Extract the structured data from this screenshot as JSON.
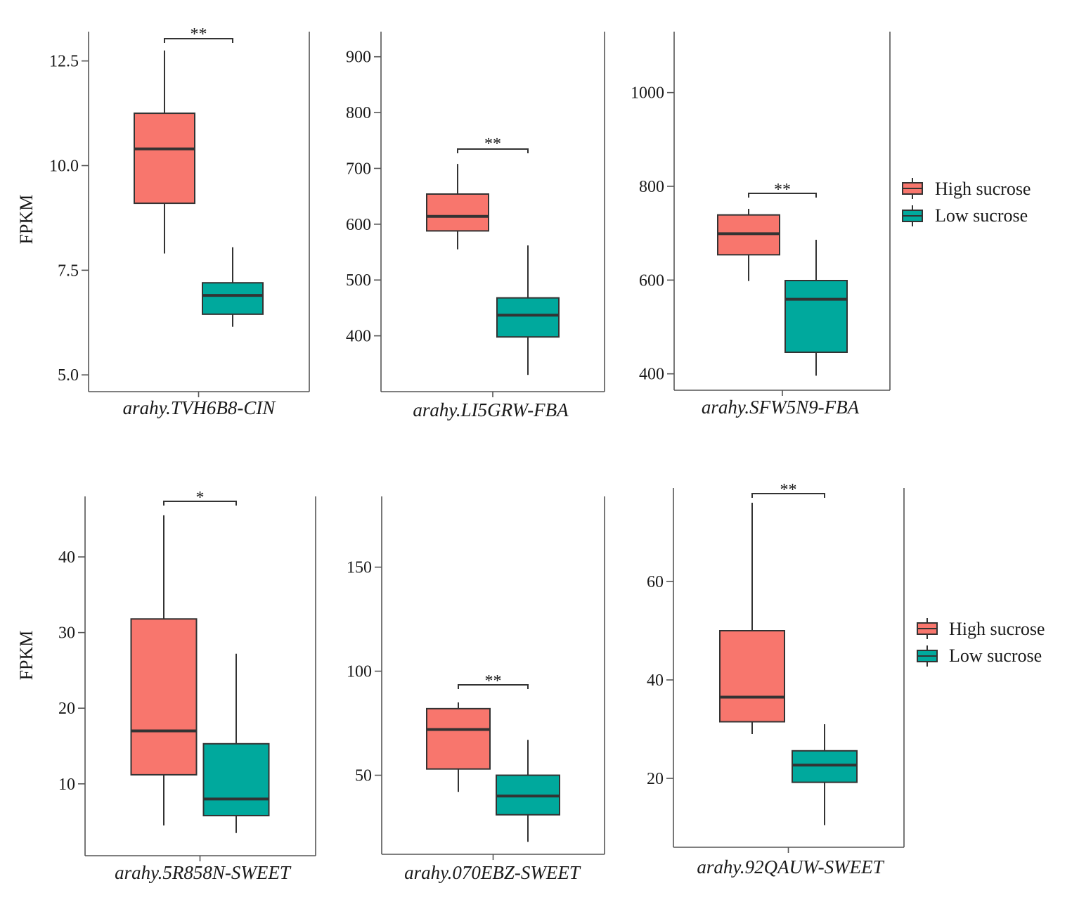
{
  "colors": {
    "high": "#f8766d",
    "low": "#00a99d",
    "line": "#333333",
    "axis": "#555555"
  },
  "legend": {
    "high_label": "High sucrose",
    "low_label": "Low sucrose"
  },
  "ylabel": "FPKM",
  "chart_data": [
    {
      "type": "box",
      "title": "",
      "xlabel": "arahy.TVH6B8-CIN",
      "ylabel": "FPKM",
      "ylim": [
        4.6,
        13.2
      ],
      "yticks": [
        5.0,
        7.5,
        10.0,
        12.5
      ],
      "ytick_labels": [
        "5.0",
        "7.5",
        "10.0",
        "12.5"
      ],
      "series": [
        {
          "name": "High sucrose",
          "min": 7.9,
          "q1": 9.1,
          "median": 10.4,
          "q3": 11.25,
          "max": 12.75
        },
        {
          "name": "Low sucrose",
          "min": 6.15,
          "q1": 6.45,
          "median": 6.9,
          "q3": 7.2,
          "max": 8.05
        }
      ],
      "significance": "**"
    },
    {
      "type": "box",
      "title": "",
      "xlabel": "arahy.LI5GRW-FBA",
      "ylabel": "",
      "ylim": [
        300,
        945
      ],
      "yticks": [
        400,
        500,
        600,
        700,
        800,
        900
      ],
      "ytick_labels": [
        "400",
        "500",
        "600",
        "700",
        "800",
        "900"
      ],
      "series": [
        {
          "name": "High sucrose",
          "min": 555,
          "q1": 588,
          "median": 614,
          "q3": 654,
          "max": 708
        },
        {
          "name": "Low sucrose",
          "min": 330,
          "q1": 398,
          "median": 437,
          "q3": 468,
          "max": 562
        }
      ],
      "significance": "**"
    },
    {
      "type": "box",
      "title": "",
      "xlabel": "arahy.SFW5N9-FBA",
      "ylabel": "",
      "ylim": [
        365,
        1130
      ],
      "yticks": [
        400,
        600,
        800,
        1000
      ],
      "ytick_labels": [
        "400",
        "600",
        "800",
        "1000"
      ],
      "series": [
        {
          "name": "High sucrose",
          "min": 598,
          "q1": 654,
          "median": 699,
          "q3": 739,
          "max": 752
        },
        {
          "name": "Low sucrose",
          "min": 396,
          "q1": 446,
          "median": 559,
          "q3": 599,
          "max": 686
        }
      ],
      "significance": "**"
    },
    {
      "type": "box",
      "title": "",
      "xlabel": "arahy.5R858N-SWEET",
      "ylabel": "FPKM",
      "ylim": [
        0.5,
        48
      ],
      "yticks": [
        10,
        20,
        30,
        40
      ],
      "ytick_labels": [
        "10",
        "20",
        "30",
        "40"
      ],
      "series": [
        {
          "name": "High sucrose",
          "min": 4.5,
          "q1": 11.2,
          "median": 17.0,
          "q3": 31.8,
          "max": 45.5
        },
        {
          "name": "Low sucrose",
          "min": 3.5,
          "q1": 5.8,
          "median": 8.0,
          "q3": 15.3,
          "max": 27.2
        }
      ],
      "significance": "*"
    },
    {
      "type": "box",
      "title": "",
      "xlabel": "arahy.070EBZ-SWEET",
      "ylabel": "",
      "ylim": [
        12,
        184
      ],
      "yticks": [
        50,
        100,
        150
      ],
      "ytick_labels": [
        "50",
        "100",
        "150"
      ],
      "series": [
        {
          "name": "High sucrose",
          "min": 42,
          "q1": 53,
          "median": 72,
          "q3": 82,
          "max": 85
        },
        {
          "name": "Low sucrose",
          "min": 18,
          "q1": 31,
          "median": 40,
          "q3": 50,
          "max": 67
        }
      ],
      "significance": "**"
    },
    {
      "type": "box",
      "title": "",
      "xlabel": "arahy.92QAUW-SWEET",
      "ylabel": "",
      "ylim": [
        6,
        79
      ],
      "yticks": [
        20,
        40,
        60
      ],
      "ytick_labels": [
        "20",
        "40",
        "60"
      ],
      "series": [
        {
          "name": "High sucrose",
          "min": 29,
          "q1": 31.5,
          "median": 36.5,
          "q3": 50,
          "max": 76
        },
        {
          "name": "Low sucrose",
          "min": 10.5,
          "q1": 19.2,
          "median": 22.7,
          "q3": 25.6,
          "max": 31
        }
      ],
      "significance": "**"
    }
  ]
}
